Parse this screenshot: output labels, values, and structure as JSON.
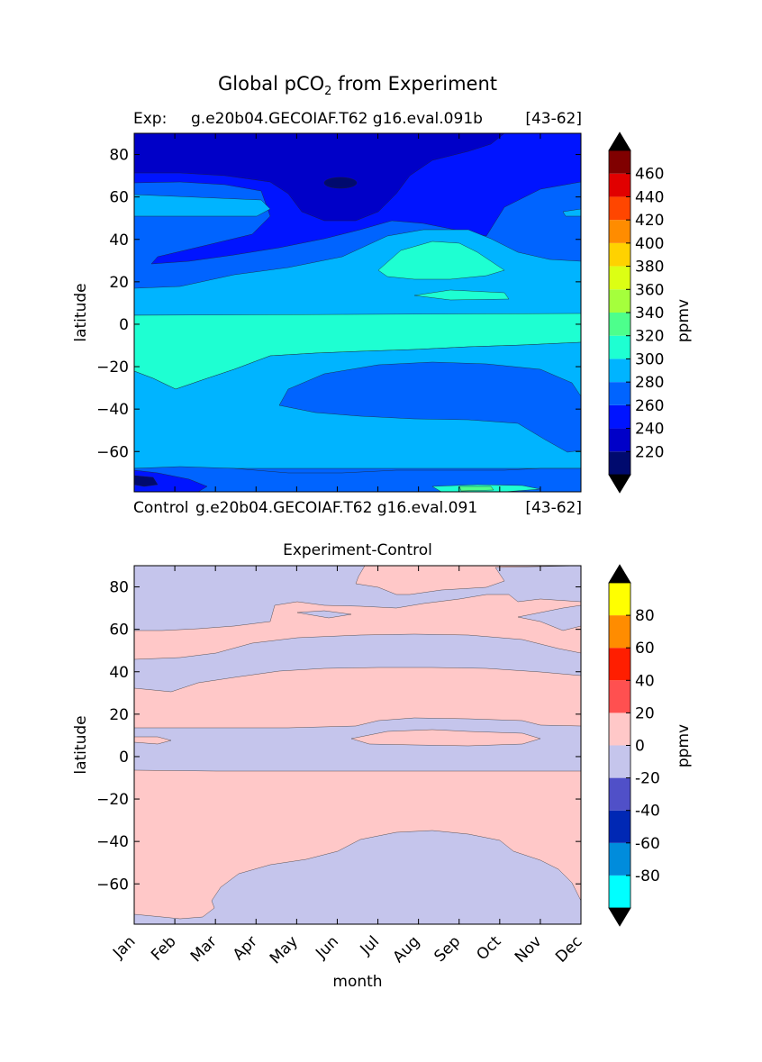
{
  "figure": {
    "title_prefix": "Global pCO",
    "title_subscript": "2",
    "title_suffix": " from Experiment"
  },
  "top_panel": {
    "exp_label": "Exp:",
    "exp_case": "g.e20b04.GECOIAF.T62 g16.eval.091b",
    "exp_years": "[43-62]",
    "control_label": "Control",
    "control_case": "g.e20b04.GECOIAF.T62 g16.eval.091",
    "control_years": "[43-62]"
  },
  "bottom_panel": {
    "title": "Experiment-Control"
  },
  "chart_data": [
    {
      "type": "heatmap",
      "plot": "filled-contour",
      "title": "",
      "xlabel": "",
      "ylabel": "latitude",
      "x_tick_labels": [],
      "y_ticks": [
        -60,
        -40,
        -20,
        0,
        20,
        40,
        60,
        80
      ],
      "ylim": [
        -79,
        90
      ],
      "xlim": [
        "Jan",
        "Dec"
      ],
      "colorbar": {
        "label": "ppmv",
        "ticks": [
          220,
          240,
          260,
          280,
          300,
          320,
          340,
          360,
          380,
          400,
          420,
          440,
          460
        ],
        "extend": "both",
        "levels": [
          200,
          220,
          240,
          260,
          280,
          300,
          320,
          340,
          360,
          380,
          400,
          420,
          440,
          460,
          480
        ],
        "colors": [
          "#000a6e",
          "#0000c8",
          "#0014ff",
          "#0064ff",
          "#00b4ff",
          "#1effd2",
          "#4dff8c",
          "#a5ff3c",
          "#dcff14",
          "#ffd200",
          "#ff8c00",
          "#ff4600",
          "#e10000",
          "#800000"
        ],
        "over_color": "#000000",
        "under_color": "#000000"
      },
      "regions": [
        {
          "band": "far south (<-70)",
          "value_range": "240-260 ppmv, patches 200-240"
        },
        {
          "band": "-70 to -50",
          "value_range": "280-300 ppmv"
        },
        {
          "band": "-50 to -25 (Mar-Oct)",
          "value_range": "260-280 ppmv"
        },
        {
          "band": "-25 to 5",
          "value_range": "300-320 ppmv (Jan-Mar), 280-320 ppmv later"
        },
        {
          "band": "5 to 20",
          "value_range": "280-300 ppmv"
        },
        {
          "band": "20 to 40 (Jun-Sep)",
          "value_range": "300-320 ppmv"
        },
        {
          "band": "25 to 60",
          "value_range": "260-280 ppmv"
        },
        {
          "band": "60 to 90",
          "value_range": "220-260 ppmv, minimum near Jun at 68N"
        }
      ]
    },
    {
      "type": "heatmap",
      "plot": "filled-contour",
      "title": "Experiment-Control",
      "xlabel": "month",
      "ylabel": "latitude",
      "x_tick_labels": [
        "Jan",
        "Feb",
        "Mar",
        "Apr",
        "May",
        "Jun",
        "Jul",
        "Aug",
        "Sep",
        "Oct",
        "Nov",
        "Dec"
      ],
      "y_ticks": [
        -60,
        -40,
        -20,
        0,
        20,
        40,
        60,
        80
      ],
      "ylim": [
        -79,
        90
      ],
      "xlim": [
        "Jan",
        "Dec"
      ],
      "colorbar": {
        "label": "ppmv",
        "ticks": [
          -80,
          -60,
          -40,
          -20,
          0,
          20,
          40,
          60,
          80
        ],
        "extend": "both",
        "levels": [
          -100,
          -80,
          -60,
          -40,
          -20,
          0,
          20,
          40,
          60,
          80,
          100
        ],
        "colors": [
          "#00ffff",
          "#008cdc",
          "#0028b4",
          "#5050c8",
          "#c5c5ec",
          "#ffc8c8",
          "#ff5050",
          "#ff1e00",
          "#ff8c00",
          "#ffff00"
        ],
        "over_color": "#000000",
        "under_color": "#000000"
      },
      "regions": [
        {
          "band": "-79 to -35 (Mar-Nov)",
          "value_range": "-20 to 0 ppmv"
        },
        {
          "band": "-35 to -7",
          "value_range": "0 to 20 ppmv"
        },
        {
          "band": "-7 to 12",
          "value_range": "-20 to 0 ppmv"
        },
        {
          "band": "12 to 35",
          "value_range": "0 to 20 ppmv"
        },
        {
          "band": "35 to 55",
          "value_range": "-20 to 0 ppmv"
        },
        {
          "band": "55 to 70",
          "value_range": "0 to 20 ppmv"
        },
        {
          "band": "70 to 90",
          "value_range": "-20 to 0 ppmv, positive near Jul-Sep"
        }
      ]
    }
  ]
}
